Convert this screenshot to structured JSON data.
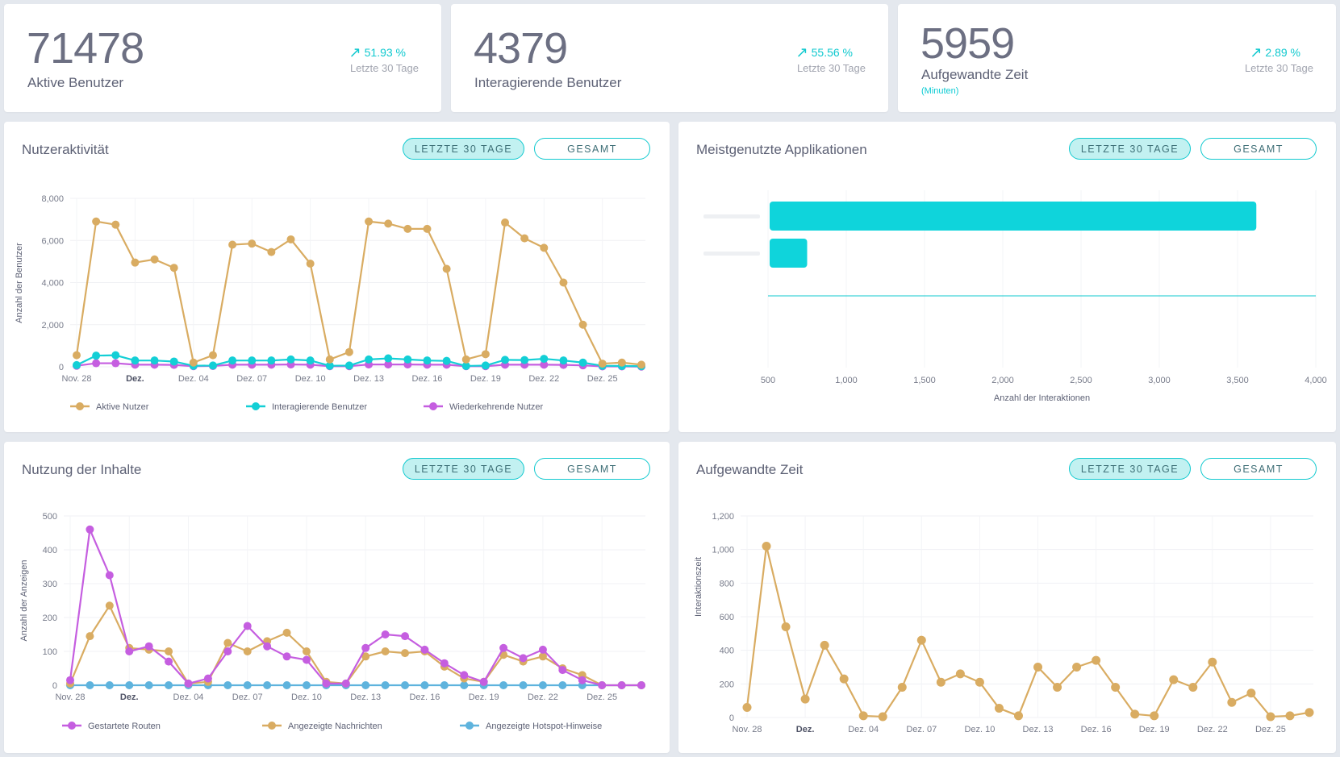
{
  "kpis": [
    {
      "value": "71478",
      "label": "Aktive Benutzer",
      "sub": "",
      "trend": "51.93 %",
      "period": "Letzte 30 Tage"
    },
    {
      "value": "4379",
      "label": "Interagierende Benutzer",
      "sub": "",
      "trend": "55.56 %",
      "period": "Letzte 30 Tage"
    },
    {
      "value": "5959",
      "label": "Aufgewandte Zeit",
      "sub": "(Minuten)",
      "trend": "2.89 %",
      "period": "Letzte 30 Tage"
    }
  ],
  "buttons": {
    "last30": "LETZTE 30 TAGE",
    "total": "GESAMT"
  },
  "colors": {
    "accent": "#10c9cf",
    "gold": "#d9ac62",
    "cyan": "#13cfd6",
    "purple": "#c55ee0",
    "blue": "#5eb3dd"
  },
  "chart_data": [
    {
      "id": "activity",
      "type": "line",
      "title": "Nutzeraktivität",
      "xlabel": "",
      "ylabel": "Anzahl der Benutzer",
      "ylim": [
        0,
        8000
      ],
      "yticks": [
        "0",
        "2,000",
        "4,000",
        "6,000",
        "8,000"
      ],
      "xtick_labels": [
        "Nov. 28",
        "Dez.",
        "Dez. 04",
        "Dez. 07",
        "Dez. 10",
        "Dez. 13",
        "Dez. 16",
        "Dez. 19",
        "Dez. 22",
        "Dez. 25"
      ],
      "grid": true,
      "legend_position": "bottom",
      "series": [
        {
          "name": "Aktive Nutzer",
          "color": "#d9ac62",
          "values": [
            550,
            6900,
            6750,
            4950,
            5100,
            4700,
            200,
            550,
            5800,
            5850,
            5450,
            6050,
            4900,
            350,
            700,
            6900,
            6800,
            6550,
            6550,
            4650,
            350,
            600,
            6850,
            6100,
            5650,
            4000,
            2000,
            150,
            200,
            100
          ]
        },
        {
          "name": "Interagierende Benutzer",
          "color": "#13cfd6",
          "values": [
            80,
            530,
            550,
            300,
            300,
            250,
            50,
            60,
            300,
            300,
            300,
            350,
            300,
            50,
            60,
            350,
            400,
            350,
            300,
            280,
            40,
            60,
            330,
            320,
            380,
            300,
            200,
            50,
            40,
            30
          ]
        },
        {
          "name": "Wiederkehrende Nutzer",
          "color": "#c55ee0",
          "values": [
            50,
            170,
            170,
            100,
            100,
            90,
            30,
            40,
            100,
            100,
            100,
            110,
            100,
            30,
            30,
            110,
            110,
            110,
            100,
            100,
            30,
            30,
            100,
            100,
            100,
            90,
            70,
            20,
            20,
            10
          ]
        }
      ]
    },
    {
      "id": "apps",
      "type": "bar",
      "orientation": "horizontal",
      "title": "Meistgenutzte Applikationen",
      "xlabel": "Anzahl der Interaktionen",
      "ylabel": "",
      "xlim": [
        500,
        4000
      ],
      "xticks": [
        "500",
        "1,000",
        "1,500",
        "2,000",
        "2,500",
        "3,000",
        "3,500",
        "4,000"
      ],
      "categories": [
        "",
        ""
      ],
      "values": [
        3620,
        750
      ],
      "color": "#0fd4db"
    },
    {
      "id": "content",
      "type": "line",
      "title": "Nutzung der Inhalte",
      "xlabel": "",
      "ylabel": "Anzahl der Anzeigen",
      "ylim": [
        0,
        500
      ],
      "yticks": [
        "0",
        "100",
        "200",
        "300",
        "400",
        "500"
      ],
      "xtick_labels": [
        "Nov. 28",
        "Dez.",
        "Dez. 04",
        "Dez. 07",
        "Dez. 10",
        "Dez. 13",
        "Dez. 16",
        "Dez. 19",
        "Dez. 22",
        "Dez. 25"
      ],
      "grid": true,
      "legend_position": "bottom",
      "series": [
        {
          "name": "Gestartete Routen",
          "color": "#c55ee0",
          "values": [
            15,
            460,
            325,
            100,
            115,
            70,
            5,
            20,
            100,
            175,
            115,
            85,
            75,
            5,
            5,
            110,
            150,
            145,
            105,
            65,
            30,
            10,
            110,
            80,
            105,
            45,
            15,
            0,
            0,
            0
          ]
        },
        {
          "name": "Angezeigte Nachrichten",
          "color": "#d9ac62",
          "values": [
            5,
            145,
            235,
            110,
            105,
            100,
            5,
            10,
            125,
            100,
            130,
            155,
            100,
            10,
            5,
            85,
            100,
            95,
            100,
            55,
            20,
            10,
            90,
            70,
            85,
            50,
            30,
            0,
            0,
            0
          ]
        },
        {
          "name": "Angezeigte Hotspot-Hinweise",
          "color": "#5eb3dd",
          "values": [
            0,
            0,
            0,
            0,
            0,
            0,
            0,
            0,
            0,
            0,
            0,
            0,
            0,
            0,
            0,
            0,
            0,
            0,
            0,
            0,
            0,
            0,
            0,
            0,
            0,
            0,
            0,
            0,
            0,
            0
          ]
        }
      ]
    },
    {
      "id": "time",
      "type": "line",
      "title": "Aufgewandte Zeit",
      "xlabel": "",
      "ylabel": "Interaktionszeit",
      "ylim": [
        0,
        1200
      ],
      "yticks": [
        "0",
        "200",
        "400",
        "600",
        "800",
        "1,000",
        "1,200"
      ],
      "xtick_labels": [
        "Nov. 28",
        "Dez.",
        "Dez. 04",
        "Dez. 07",
        "Dez. 10",
        "Dez. 13",
        "Dez. 16",
        "Dez. 19",
        "Dez. 22",
        "Dez. 25"
      ],
      "grid": true,
      "legend_position": "none",
      "series": [
        {
          "name": "",
          "color": "#d9ac62",
          "values": [
            60,
            1020,
            540,
            110,
            430,
            230,
            10,
            5,
            180,
            460,
            210,
            260,
            210,
            55,
            10,
            300,
            180,
            300,
            340,
            180,
            20,
            10,
            225,
            180,
            330,
            90,
            145,
            5,
            10,
            30
          ]
        }
      ]
    }
  ]
}
